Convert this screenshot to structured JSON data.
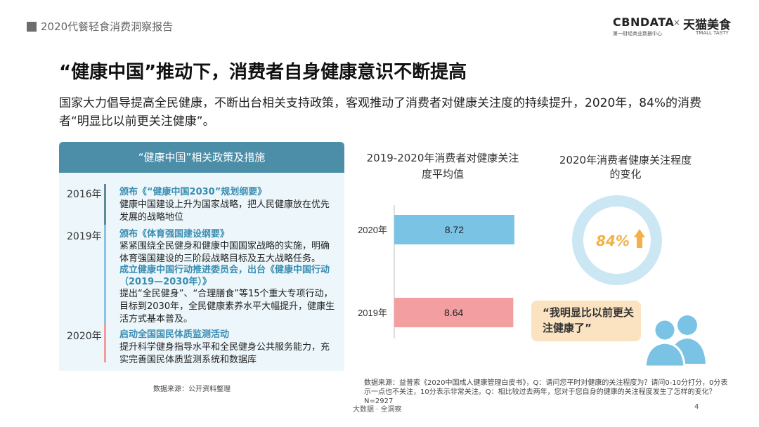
{
  "header": {
    "report_title": "2020代餐轻食消费洞察报告",
    "brand_cbn": "CBNDATA",
    "brand_cbn_sub": "第一财经商业数据中心",
    "brand_sep": "×",
    "brand_tmall": "天猫美食",
    "brand_tmall_sub": "TMALL TASTY"
  },
  "title": "“健康中国”推动下，消费者自身健康意识不断提高",
  "description": "国家大力倡导提高全民健康，不断出台相关支持政策，客观推动了消费者对健康关注度的持续提升，2020年，84%的消费者“明显比以前更关注健康”。",
  "policy_panel": {
    "header": "“健康中国”相关政策及措施",
    "colors": [
      "#5e8b9a",
      "#86c6e3",
      "#f19b9b"
    ],
    "entries": [
      {
        "year": "2016年",
        "items": [
          {
            "title": "颁布《“健康中国2030”规划纲要》",
            "text": "健康中国建设上升为国家战略，把人民健康放在优先发展的战略地位"
          }
        ]
      },
      {
        "year": "2019年",
        "items": [
          {
            "title": "颁布《体育强国建设纲要》",
            "text": "紧紧围绕全民健身和健康中国国家战略的实施，明确体育强国建设的三阶段战略目标及五大战略任务。"
          },
          {
            "title": "成立健康中国行动推进委员会，出台《健康中国行动（2019—2030年）》",
            "text": "提出“全民健身”、“合理膳食”等15个重大专项行动，目标到2030年，全民健康素养水平大幅提升，健康生活方式基本普及。"
          }
        ]
      },
      {
        "year": "2020年",
        "items": [
          {
            "title": "启动全国国民体质监测活动",
            "text": "提升科学健身指导水平和全民健身公共服务能力，充实完善国民体质监测系统和数据库"
          }
        ]
      }
    ],
    "source": "数据来源：公开资料整理"
  },
  "chart_data": [
    {
      "type": "bar",
      "orientation": "horizontal",
      "title": "2019-2020年消费者对健康关注度平均值",
      "categories": [
        "2020年",
        "2019年"
      ],
      "values": [
        8.72,
        8.64
      ],
      "colors": [
        "#7ac3e4",
        "#f39ea0"
      ],
      "xlim": [
        0,
        10
      ],
      "grid": false
    },
    {
      "type": "pie",
      "variant": "donut",
      "title": "2020年消费者健康关注程度的变化",
      "values": [
        84
      ],
      "value_label": "84%",
      "colors": [
        "#cbe7f4",
        "#f3b046"
      ]
    }
  ],
  "quote": "“我明显比以前更关注健康了”",
  "source_right": "数据来源：益普索《2020中国成人健康管理白皮书》，Q：请问您平时对健康的关注程度为？请问0-10分打分，0分表示一点也不关注，10分表示非常关注。Q：相比较过去两年，您对于您自身的健康的关注程度发生了怎样的变化？N=2927",
  "footer": {
    "tagline": "大数据 · 全洞察",
    "page": "4"
  }
}
